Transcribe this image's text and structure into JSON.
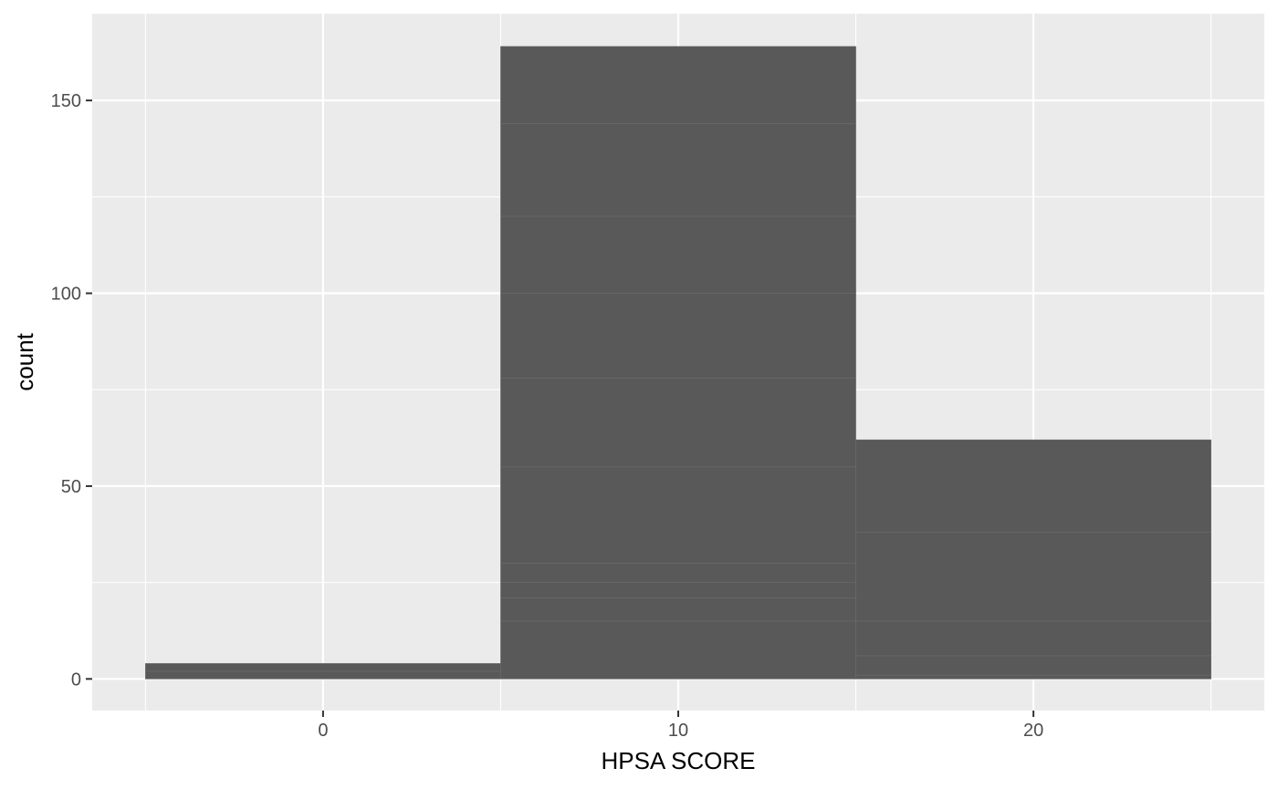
{
  "chart_data": {
    "type": "bar",
    "title": "",
    "xlabel": "HPSA SCORE",
    "ylabel": "count",
    "xlim": [
      -6.5,
      26.5
    ],
    "ylim": [
      -8.2,
      172.5
    ],
    "x_ticks": [
      0,
      10,
      20
    ],
    "x_tick_labels": [
      "0",
      "10",
      "20"
    ],
    "y_ticks": [
      0,
      50,
      100,
      150
    ],
    "y_tick_labels": [
      "0",
      "50",
      "100",
      "150"
    ],
    "x_minor_breaks": [
      -5,
      5,
      15,
      25
    ],
    "y_minor_breaks": [
      25,
      75,
      125
    ],
    "bins": [
      {
        "xmin": -5,
        "xmax": 5,
        "count": 4,
        "segments": [
          2,
          2
        ]
      },
      {
        "xmin": 5,
        "xmax": 15,
        "count": 164,
        "segments": [
          15,
          6,
          4,
          5,
          25,
          23,
          22,
          20,
          24,
          20
        ]
      },
      {
        "xmin": 15,
        "xmax": 25,
        "count": 62,
        "segments": [
          1,
          5,
          9,
          23,
          24
        ]
      }
    ],
    "grid": true,
    "legend": "none"
  },
  "colors": {
    "panel_background": "#ebebeb",
    "grid_major": "#ffffff",
    "grid_minor": "#f5f5f5",
    "bar_fill": "#595959",
    "segment_line": "#6b6b6b",
    "tick_mark": "#333333",
    "tick_label": "#4d4d4d",
    "axis_title": "#000000"
  }
}
